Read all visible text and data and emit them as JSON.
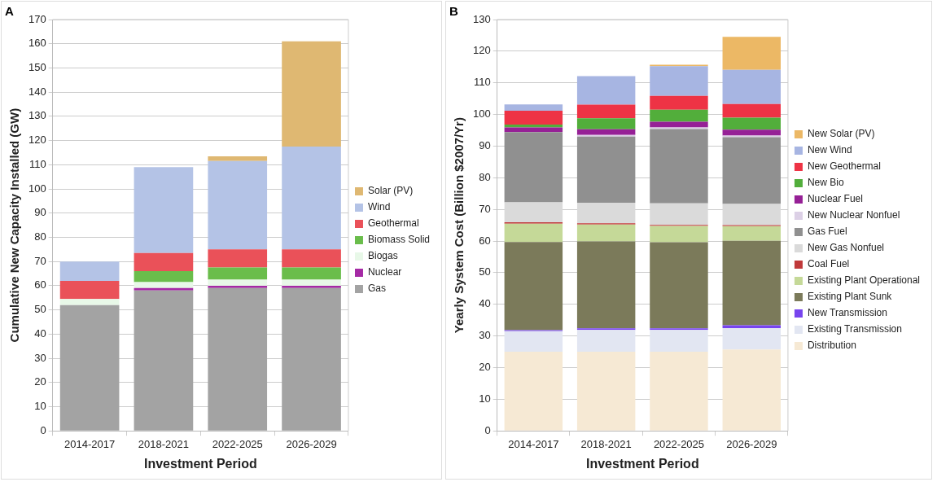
{
  "chart_data": [
    {
      "type": "bar",
      "title": "A",
      "xlabel": "Investment Period",
      "ylabel": "Cumulative New Capacity Installed (GW)",
      "categories": [
        "2014-2017",
        "2018-2021",
        "2022-2025",
        "2026-2029"
      ],
      "stacked": true,
      "ylim": [
        0,
        170
      ],
      "yticks": [
        0,
        10,
        20,
        30,
        40,
        50,
        60,
        70,
        80,
        90,
        100,
        110,
        120,
        130,
        140,
        150,
        160,
        170
      ],
      "grid": "y",
      "legend": "right",
      "series": [
        {
          "name": "Gas",
          "color": "#a3a3a3",
          "values": [
            52,
            58,
            59,
            59
          ]
        },
        {
          "name": "Nuclear",
          "color": "#a52aa5",
          "values": [
            0,
            1,
            1,
            1
          ]
        },
        {
          "name": "Biogas",
          "color": "#e8f8e8",
          "values": [
            2.5,
            2.5,
            2.5,
            2.5
          ]
        },
        {
          "name": "Biomass Solid",
          "color": "#6abd4b",
          "values": [
            0,
            4.5,
            5,
            5
          ]
        },
        {
          "name": "Geothermal",
          "color": "#ea5159",
          "values": [
            7.5,
            7.5,
            7.5,
            7.5
          ]
        },
        {
          "name": "Wind",
          "color": "#b4c3e6",
          "values": [
            8,
            35.5,
            36.5,
            42.5
          ]
        },
        {
          "name": "Solar (PV)",
          "color": "#dfb872",
          "values": [
            0,
            0,
            2,
            43.5
          ]
        }
      ]
    },
    {
      "type": "bar",
      "title": "B",
      "xlabel": "Investment Period",
      "ylabel": "Yearly System Cost (Billion $2007/Yr)",
      "categories": [
        "2014-2017",
        "2018-2021",
        "2022-2025",
        "2026-2029"
      ],
      "stacked": true,
      "ylim": [
        0,
        130
      ],
      "yticks": [
        0,
        10,
        20,
        30,
        40,
        50,
        60,
        70,
        80,
        90,
        100,
        110,
        120,
        130
      ],
      "grid": "y",
      "legend": "right",
      "series": [
        {
          "name": "Distribution",
          "color": "#f6e9d4",
          "values": [
            25,
            25,
            25,
            25.7
          ]
        },
        {
          "name": "Existing Transmission",
          "color": "#e2e6f2",
          "values": [
            6.5,
            6.9,
            6.9,
            6.8
          ]
        },
        {
          "name": "New Transmission",
          "color": "#7744ee",
          "values": [
            0.3,
            0.5,
            0.5,
            0.9
          ]
        },
        {
          "name": "Existing Plant Sunk",
          "color": "#7b7a5a",
          "values": [
            27.9,
            27.5,
            27.2,
            26.7
          ]
        },
        {
          "name": "Existing Plant Operational",
          "color": "#c5d998",
          "values": [
            5.8,
            5.3,
            5.2,
            4.6
          ]
        },
        {
          "name": "Coal Fuel",
          "color": "#c0393a",
          "values": [
            0.4,
            0.4,
            0.3,
            0.3
          ]
        },
        {
          "name": "New Gas Nonfuel",
          "color": "#dadada",
          "values": [
            6.3,
            6.5,
            6.8,
            6.7
          ]
        },
        {
          "name": "Gas Fuel",
          "color": "#909090",
          "values": [
            22.2,
            20.9,
            23.5,
            21.1
          ]
        },
        {
          "name": "New Nuclear Nonfuel",
          "color": "#dcd0e6",
          "values": [
            null,
            0.5,
            0.5,
            0.5
          ]
        },
        {
          "name": "Nuclear Fuel",
          "color": "#962096",
          "values": [
            1.5,
            1.8,
            1.8,
            1.9
          ]
        },
        {
          "name": "New Bio",
          "color": "#52ae3b",
          "values": [
            0.9,
            3.5,
            3.8,
            3.8
          ]
        },
        {
          "name": "New Geothermal",
          "color": "#ee3345",
          "values": [
            4.4,
            4.3,
            4.4,
            4.3
          ]
        },
        {
          "name": "New Wind",
          "color": "#a7b5e2",
          "values": [
            2,
            9,
            9.4,
            10.8
          ]
        },
        {
          "name": "New Solar (PV)",
          "color": "#ecb865",
          "values": [
            0,
            0,
            0.4,
            10.4
          ]
        }
      ]
    }
  ]
}
